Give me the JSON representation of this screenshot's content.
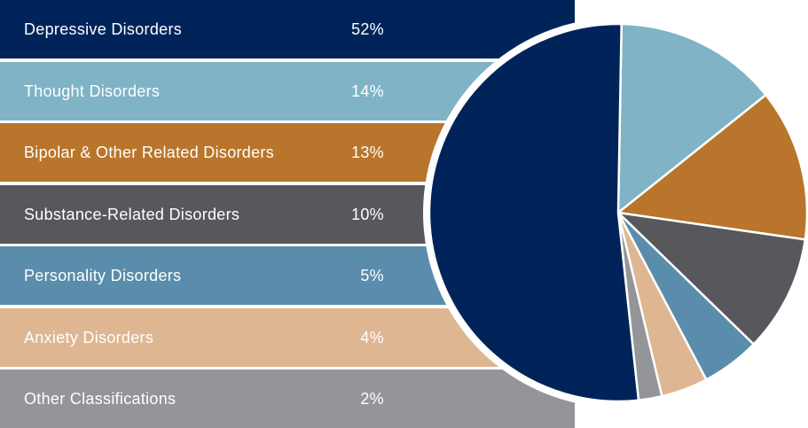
{
  "chart_data": {
    "type": "pie",
    "categories": [
      "Depressive Disorders",
      "Thought Disorders",
      "Bipolar & Other Related Disorders",
      "Substance-Related Disorders",
      "Personality Disorders",
      "Anxiety Disorders",
      "Other Classifications"
    ],
    "values": [
      52,
      14,
      13,
      10,
      5,
      4,
      2
    ],
    "value_labels": [
      "52%",
      "14%",
      "13%",
      "10%",
      "5%",
      "4%",
      "2%"
    ],
    "colors": [
      "#00245a",
      "#7fb3c5",
      "#b8752b",
      "#58575c",
      "#5a8dab",
      "#deb692",
      "#939598"
    ],
    "legend_placement": "left"
  }
}
